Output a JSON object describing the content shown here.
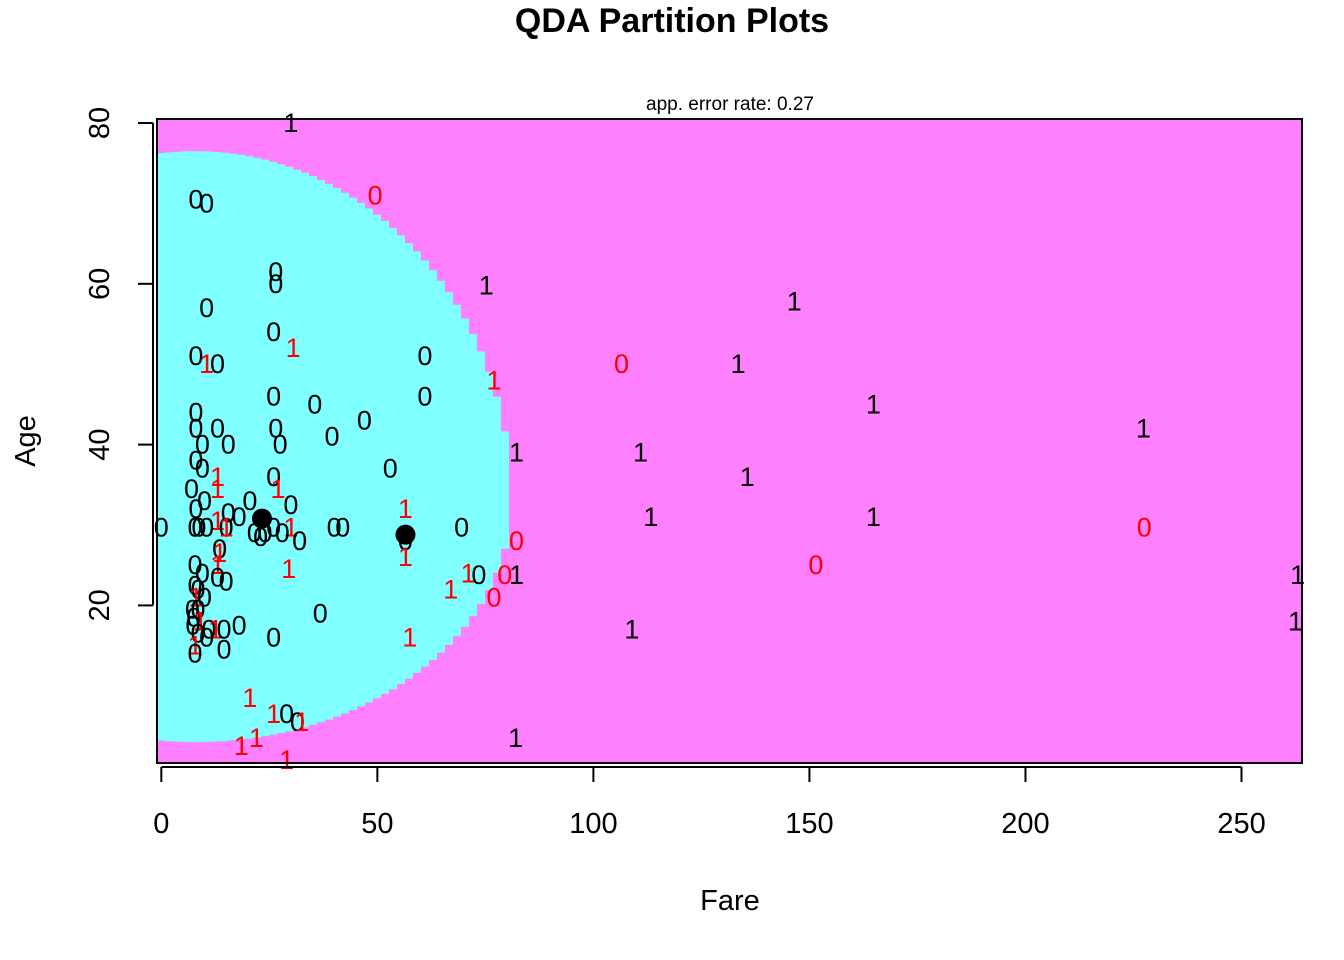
{
  "chart_data": {
    "type": "scatter",
    "title": "QDA Partition Plots",
    "subtitle": "app. error rate: 0.27",
    "xlabel": "Fare",
    "ylabel": "Age",
    "xlim": [
      -1,
      264
    ],
    "ylim": [
      0.4,
      80.5
    ],
    "x_ticks": [
      0,
      50,
      100,
      150,
      200,
      250
    ],
    "y_ticks": [
      20,
      40,
      60,
      80
    ],
    "region_colors": {
      "0": "#7fffff",
      "1": "#ff80ff"
    },
    "correct_color": "#000000",
    "error_color": "#ff0000",
    "class_means": [
      {
        "x": 23.3,
        "y": 30.8
      },
      {
        "x": 56.5,
        "y": 28.8
      }
    ],
    "points": [
      {
        "x": 30,
        "y": 80,
        "label": "1",
        "misclassified": false
      },
      {
        "x": 8,
        "y": 70.5,
        "label": "0",
        "misclassified": false
      },
      {
        "x": 10.5,
        "y": 70,
        "label": "0",
        "misclassified": false
      },
      {
        "x": 49.5,
        "y": 71,
        "label": "0",
        "misclassified": true
      },
      {
        "x": 26.5,
        "y": 61.5,
        "label": "0",
        "misclassified": false
      },
      {
        "x": 26.5,
        "y": 60,
        "label": "0",
        "misclassified": false
      },
      {
        "x": 75.2,
        "y": 59.8,
        "label": "1",
        "misclassified": false
      },
      {
        "x": 146.5,
        "y": 57.8,
        "label": "1",
        "misclassified": false
      },
      {
        "x": 10.5,
        "y": 57,
        "label": "0",
        "misclassified": false
      },
      {
        "x": 26,
        "y": 54,
        "label": "0",
        "misclassified": false
      },
      {
        "x": 30.5,
        "y": 52,
        "label": "1",
        "misclassified": true
      },
      {
        "x": 8,
        "y": 51,
        "label": "0",
        "misclassified": false
      },
      {
        "x": 61,
        "y": 51,
        "label": "0",
        "misclassified": false
      },
      {
        "x": 10.5,
        "y": 50,
        "label": "1",
        "misclassified": true
      },
      {
        "x": 13,
        "y": 50,
        "label": "0",
        "misclassified": false
      },
      {
        "x": 106.5,
        "y": 50,
        "label": "0",
        "misclassified": true
      },
      {
        "x": 133.5,
        "y": 50,
        "label": "1",
        "misclassified": false
      },
      {
        "x": 77,
        "y": 48,
        "label": "1",
        "misclassified": true
      },
      {
        "x": 26,
        "y": 46,
        "label": "0",
        "misclassified": false
      },
      {
        "x": 61,
        "y": 46,
        "label": "0",
        "misclassified": false
      },
      {
        "x": 35.5,
        "y": 45,
        "label": "0",
        "misclassified": false
      },
      {
        "x": 164.8,
        "y": 45,
        "label": "1",
        "misclassified": false
      },
      {
        "x": 8,
        "y": 44,
        "label": "0",
        "misclassified": false
      },
      {
        "x": 47,
        "y": 43,
        "label": "0",
        "misclassified": false
      },
      {
        "x": 13,
        "y": 42,
        "label": "0",
        "misclassified": false
      },
      {
        "x": 26.5,
        "y": 42,
        "label": "0",
        "misclassified": false
      },
      {
        "x": 227.3,
        "y": 42,
        "label": "1",
        "misclassified": false
      },
      {
        "x": 8,
        "y": 42,
        "label": "0",
        "misclassified": false
      },
      {
        "x": 39.5,
        "y": 41,
        "label": "0",
        "misclassified": false
      },
      {
        "x": 9.5,
        "y": 40,
        "label": "0",
        "misclassified": false
      },
      {
        "x": 15.5,
        "y": 40,
        "label": "0",
        "misclassified": false
      },
      {
        "x": 27.5,
        "y": 40,
        "label": "0",
        "misclassified": false
      },
      {
        "x": 82.2,
        "y": 39,
        "label": "1",
        "misclassified": false
      },
      {
        "x": 110.9,
        "y": 39,
        "label": "1",
        "misclassified": false
      },
      {
        "x": 8,
        "y": 38,
        "label": "0",
        "misclassified": false
      },
      {
        "x": 53,
        "y": 37,
        "label": "0",
        "misclassified": false
      },
      {
        "x": 9.5,
        "y": 37,
        "label": "0",
        "misclassified": false
      },
      {
        "x": 26,
        "y": 36,
        "label": "0",
        "misclassified": false
      },
      {
        "x": 13,
        "y": 36,
        "label": "1",
        "misclassified": true
      },
      {
        "x": 135.6,
        "y": 36,
        "label": "1",
        "misclassified": false
      },
      {
        "x": 7,
        "y": 34.5,
        "label": "0",
        "misclassified": false
      },
      {
        "x": 13,
        "y": 34.5,
        "label": "1",
        "misclassified": true
      },
      {
        "x": 27,
        "y": 34.5,
        "label": "1",
        "misclassified": true
      },
      {
        "x": 10,
        "y": 33,
        "label": "0",
        "misclassified": false
      },
      {
        "x": 20.5,
        "y": 33,
        "label": "0",
        "misclassified": false
      },
      {
        "x": 30,
        "y": 32.5,
        "label": "0",
        "misclassified": false
      },
      {
        "x": 56.5,
        "y": 32,
        "label": "1",
        "misclassified": true
      },
      {
        "x": 8,
        "y": 32,
        "label": "0",
        "misclassified": false
      },
      {
        "x": 15.5,
        "y": 31.5,
        "label": "0",
        "misclassified": false
      },
      {
        "x": 18,
        "y": 31,
        "label": "0",
        "misclassified": false
      },
      {
        "x": 113.3,
        "y": 31,
        "label": "1",
        "misclassified": false
      },
      {
        "x": 164.8,
        "y": 31,
        "label": "1",
        "misclassified": false
      },
      {
        "x": 13,
        "y": 30.5,
        "label": "1",
        "misclassified": true
      },
      {
        "x": 0,
        "y": 29.7,
        "label": "0",
        "misclassified": false
      },
      {
        "x": 7.8,
        "y": 29.7,
        "label": "0",
        "misclassified": false
      },
      {
        "x": 8.7,
        "y": 29.7,
        "label": "0",
        "misclassified": false
      },
      {
        "x": 10.5,
        "y": 29.7,
        "label": "0",
        "misclassified": false
      },
      {
        "x": 15,
        "y": 29.7,
        "label": "0",
        "misclassified": false
      },
      {
        "x": 15,
        "y": 29.7,
        "label": "1",
        "misclassified": true
      },
      {
        "x": 26,
        "y": 29.7,
        "label": "0",
        "misclassified": false
      },
      {
        "x": 30,
        "y": 29.7,
        "label": "1",
        "misclassified": true
      },
      {
        "x": 40,
        "y": 29.7,
        "label": "0",
        "misclassified": false
      },
      {
        "x": 42,
        "y": 29.7,
        "label": "0",
        "misclassified": false
      },
      {
        "x": 69.5,
        "y": 29.7,
        "label": "0",
        "misclassified": false
      },
      {
        "x": 227.5,
        "y": 29.7,
        "label": "0",
        "misclassified": true
      },
      {
        "x": 24,
        "y": 29,
        "label": "0",
        "misclassified": false
      },
      {
        "x": 28,
        "y": 29,
        "label": "0",
        "misclassified": false
      },
      {
        "x": 21.5,
        "y": 29,
        "label": "0",
        "misclassified": false
      },
      {
        "x": 23,
        "y": 28.5,
        "label": "0",
        "misclassified": false
      },
      {
        "x": 56.5,
        "y": 28,
        "label": "0",
        "misclassified": false
      },
      {
        "x": 82.2,
        "y": 28,
        "label": "0",
        "misclassified": true
      },
      {
        "x": 32,
        "y": 28,
        "label": "0",
        "misclassified": false
      },
      {
        "x": 13.5,
        "y": 27,
        "label": "0",
        "misclassified": false
      },
      {
        "x": 13.5,
        "y": 26.5,
        "label": "1",
        "misclassified": true
      },
      {
        "x": 56.5,
        "y": 26,
        "label": "1",
        "misclassified": true
      },
      {
        "x": 7.8,
        "y": 25,
        "label": "0",
        "misclassified": false
      },
      {
        "x": 151.5,
        "y": 25,
        "label": "0",
        "misclassified": true
      },
      {
        "x": 13,
        "y": 25,
        "label": "1",
        "misclassified": true
      },
      {
        "x": 29.5,
        "y": 24.5,
        "label": "1",
        "misclassified": true
      },
      {
        "x": 9.5,
        "y": 24,
        "label": "0",
        "misclassified": false
      },
      {
        "x": 71,
        "y": 24,
        "label": "1",
        "misclassified": true
      },
      {
        "x": 73.5,
        "y": 23.8,
        "label": "0",
        "misclassified": false
      },
      {
        "x": 79.5,
        "y": 23.8,
        "label": "0",
        "misclassified": true
      },
      {
        "x": 82.2,
        "y": 23.8,
        "label": "1",
        "misclassified": false
      },
      {
        "x": 263,
        "y": 23.8,
        "label": "1",
        "misclassified": false
      },
      {
        "x": 13,
        "y": 23.5,
        "label": "0",
        "misclassified": false
      },
      {
        "x": 15,
        "y": 23,
        "label": "0",
        "misclassified": false
      },
      {
        "x": 7.8,
        "y": 22.5,
        "label": "0",
        "misclassified": false
      },
      {
        "x": 8.5,
        "y": 22,
        "label": "0",
        "misclassified": false
      },
      {
        "x": 67,
        "y": 22,
        "label": "1",
        "misclassified": true
      },
      {
        "x": 10,
        "y": 21,
        "label": "0",
        "misclassified": false
      },
      {
        "x": 8,
        "y": 21,
        "label": "1",
        "misclassified": true
      },
      {
        "x": 77,
        "y": 21,
        "label": "0",
        "misclassified": true
      },
      {
        "x": 7.2,
        "y": 19.5,
        "label": "0",
        "misclassified": false
      },
      {
        "x": 8.5,
        "y": 19.5,
        "label": "0",
        "misclassified": false
      },
      {
        "x": 36.8,
        "y": 19,
        "label": "0",
        "misclassified": false
      },
      {
        "x": 7.5,
        "y": 18.5,
        "label": "0",
        "misclassified": false
      },
      {
        "x": 9,
        "y": 18,
        "label": "1",
        "misclassified": true
      },
      {
        "x": 262.5,
        "y": 18,
        "label": "1",
        "misclassified": false
      },
      {
        "x": 7.3,
        "y": 17.5,
        "label": "0",
        "misclassified": false
      },
      {
        "x": 18,
        "y": 17.5,
        "label": "0",
        "misclassified": false
      },
      {
        "x": 11,
        "y": 17,
        "label": "0",
        "misclassified": false
      },
      {
        "x": 12.5,
        "y": 17,
        "label": "1",
        "misclassified": true
      },
      {
        "x": 14.5,
        "y": 17,
        "label": "0",
        "misclassified": false
      },
      {
        "x": 108.9,
        "y": 17,
        "label": "1",
        "misclassified": false
      },
      {
        "x": 8.5,
        "y": 16.5,
        "label": "0",
        "misclassified": false
      },
      {
        "x": 10.5,
        "y": 16,
        "label": "0",
        "misclassified": false
      },
      {
        "x": 26,
        "y": 16,
        "label": "0",
        "misclassified": false
      },
      {
        "x": 57.5,
        "y": 16,
        "label": "1",
        "misclassified": true
      },
      {
        "x": 7.8,
        "y": 15,
        "label": "1",
        "misclassified": true
      },
      {
        "x": 14.5,
        "y": 14.5,
        "label": "0",
        "misclassified": false
      },
      {
        "x": 7.8,
        "y": 14,
        "label": "0",
        "misclassified": false
      },
      {
        "x": 20.5,
        "y": 8.5,
        "label": "1",
        "misclassified": true
      },
      {
        "x": 26,
        "y": 6.5,
        "label": "1",
        "misclassified": true
      },
      {
        "x": 29,
        "y": 6.5,
        "label": "0",
        "misclassified": false
      },
      {
        "x": 31.5,
        "y": 5.5,
        "label": "0",
        "misclassified": false
      },
      {
        "x": 32.5,
        "y": 5.5,
        "label": "1",
        "misclassified": true
      },
      {
        "x": 82,
        "y": 3.5,
        "label": "1",
        "misclassified": false
      },
      {
        "x": 22,
        "y": 3.5,
        "label": "1",
        "misclassified": true
      },
      {
        "x": 18.5,
        "y": 2.5,
        "label": "1",
        "misclassified": true
      },
      {
        "x": 29,
        "y": 0.8,
        "label": "1",
        "misclassified": true
      }
    ]
  }
}
